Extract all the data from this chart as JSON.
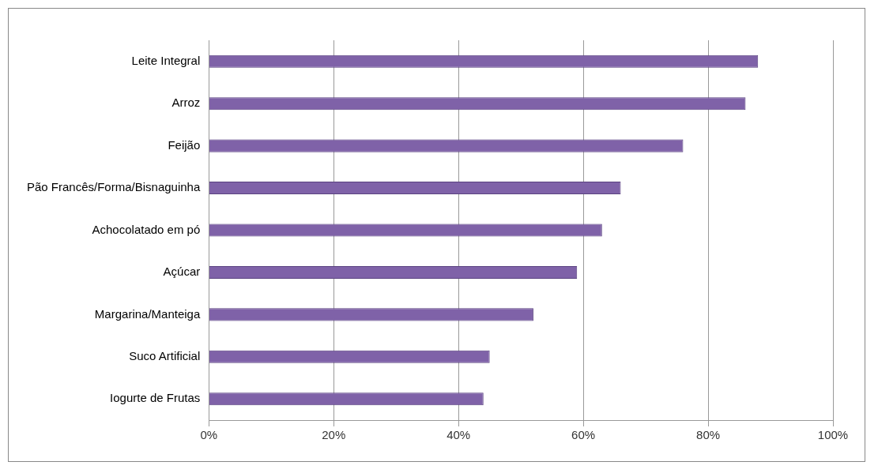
{
  "chart_data": {
    "type": "bar",
    "orientation": "horizontal",
    "categories": [
      "Leite Integral",
      "Arroz",
      "Feijão",
      "Pão Francês/Forma/Bisnaguinha",
      "Achocolatado em pó",
      "Açúcar",
      "Margarina/Manteiga",
      "Suco Artificial",
      "Iogurte de Frutas"
    ],
    "values": [
      88,
      86,
      76,
      66,
      63,
      59,
      52,
      45,
      44
    ],
    "color": "#7f62a8",
    "xlim": [
      0,
      100
    ],
    "xticks": [
      {
        "value": 0,
        "label": "0%"
      },
      {
        "value": 20,
        "label": "20%"
      },
      {
        "value": 40,
        "label": "40%"
      },
      {
        "value": 60,
        "label": "60%"
      },
      {
        "value": 80,
        "label": "80%"
      },
      {
        "value": 100,
        "label": "100%"
      }
    ],
    "grid": "x",
    "legend": false
  }
}
